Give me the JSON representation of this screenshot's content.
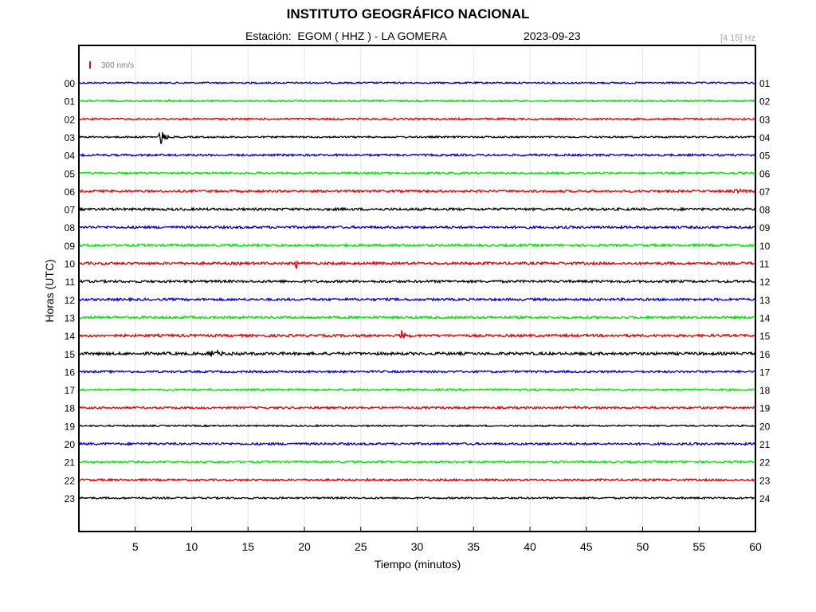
{
  "header": {
    "title": "INSTITUTO GEOGRÁFICO NACIONAL",
    "station_label": "Estación:  EGOM ( HHZ ) - LA GOMERA",
    "date": "2023-09-23",
    "filter": "[4 15] Hz"
  },
  "chart_data": {
    "type": "line",
    "title": "INSTITUTO GEOGRÁFICO NACIONAL",
    "subtitle": "Estación:  EGOM ( HHZ ) - LA GOMERA",
    "xlabel": "Tiempo (minutos)",
    "ylabel": "Horas (UTC)",
    "xlim": [
      0,
      60
    ],
    "x_ticks": [
      "5",
      "10",
      "15",
      "20",
      "25",
      "30",
      "35",
      "40",
      "45",
      "50",
      "55",
      "60"
    ],
    "left_labels": [
      "00",
      "01",
      "02",
      "03",
      "04",
      "05",
      "06",
      "07",
      "08",
      "09",
      "10",
      "11",
      "12",
      "13",
      "14",
      "15",
      "16",
      "17",
      "18",
      "19",
      "20",
      "21",
      "22",
      "23"
    ],
    "right_labels": [
      "01",
      "02",
      "03",
      "04",
      "05",
      "06",
      "07",
      "08",
      "09",
      "10",
      "11",
      "12",
      "13",
      "14",
      "15",
      "16",
      "17",
      "18",
      "19",
      "20",
      "21",
      "22",
      "23",
      "24"
    ],
    "scale_bar": {
      "label": "300 nm/s",
      "color": "#ff0000"
    },
    "grid": true,
    "color_cycle": [
      "#0000c8",
      "#00e000",
      "#e00000",
      "#000000"
    ],
    "series": [
      {
        "hour": "00",
        "color": "#0000c8",
        "noise": 1.0,
        "events": []
      },
      {
        "hour": "01",
        "color": "#00e000",
        "noise": 1.0,
        "events": [
          {
            "minute": 7.8,
            "amp": 1.5,
            "width": 0.6
          }
        ]
      },
      {
        "hour": "02",
        "color": "#e00000",
        "noise": 1.1,
        "events": []
      },
      {
        "hour": "03",
        "color": "#000000",
        "noise": 1.0,
        "events": [
          {
            "minute": 7.2,
            "amp": 13,
            "width": 0.3
          }
        ]
      },
      {
        "hour": "04",
        "color": "#0000c8",
        "noise": 1.3,
        "events": []
      },
      {
        "hour": "05",
        "color": "#00e000",
        "noise": 1.2,
        "events": []
      },
      {
        "hour": "06",
        "color": "#e00000",
        "noise": 1.4,
        "events": [
          {
            "minute": 58.5,
            "amp": 2.0,
            "width": 1.0
          }
        ]
      },
      {
        "hour": "07",
        "color": "#000000",
        "noise": 1.5,
        "events": []
      },
      {
        "hour": "08",
        "color": "#0000c8",
        "noise": 1.5,
        "events": []
      },
      {
        "hour": "09",
        "color": "#00e000",
        "noise": 1.5,
        "events": []
      },
      {
        "hour": "10",
        "color": "#e00000",
        "noise": 1.6,
        "events": [
          {
            "minute": 19.2,
            "amp": 8,
            "width": 0.3
          }
        ]
      },
      {
        "hour": "11",
        "color": "#000000",
        "noise": 1.5,
        "events": []
      },
      {
        "hour": "12",
        "color": "#0000c8",
        "noise": 1.5,
        "events": []
      },
      {
        "hour": "13",
        "color": "#00e000",
        "noise": 1.6,
        "events": []
      },
      {
        "hour": "14",
        "color": "#e00000",
        "noise": 1.6,
        "events": [
          {
            "minute": 28.5,
            "amp": 8,
            "width": 0.3
          }
        ]
      },
      {
        "hour": "15",
        "color": "#000000",
        "noise": 1.7,
        "events": [
          {
            "minute": 11.8,
            "amp": 4,
            "width": 1.0
          }
        ]
      },
      {
        "hour": "16",
        "color": "#0000c8",
        "noise": 1.3,
        "events": []
      },
      {
        "hour": "17",
        "color": "#00e000",
        "noise": 1.2,
        "events": []
      },
      {
        "hour": "18",
        "color": "#e00000",
        "noise": 1.3,
        "events": [
          {
            "minute": 44.0,
            "amp": 2.0,
            "width": 0.6
          }
        ]
      },
      {
        "hour": "19",
        "color": "#000000",
        "noise": 1.0,
        "events": []
      },
      {
        "hour": "20",
        "color": "#0000c8",
        "noise": 1.4,
        "events": []
      },
      {
        "hour": "21",
        "color": "#00e000",
        "noise": 1.2,
        "events": []
      },
      {
        "hour": "22",
        "color": "#e00000",
        "noise": 1.3,
        "events": [
          {
            "minute": 25.0,
            "amp": 2.0,
            "width": 0.6
          }
        ]
      },
      {
        "hour": "23",
        "color": "#000000",
        "noise": 1.1,
        "events": []
      }
    ]
  }
}
